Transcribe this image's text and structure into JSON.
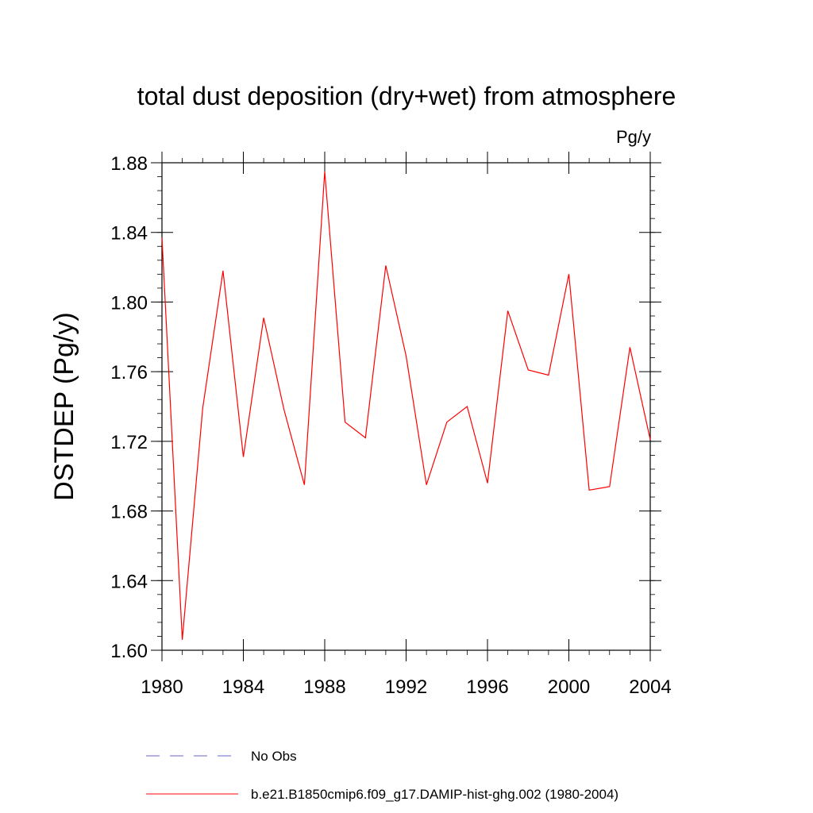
{
  "chart_data": {
    "type": "line",
    "title": "total dust deposition (dry+wet) from atmosphere",
    "units_label": "Pg/y",
    "ylabel": "DSTDEP  (Pg/y)",
    "xlabel": "",
    "xlim": [
      1980,
      2004
    ],
    "ylim": [
      1.6,
      1.88
    ],
    "x_ticks": [
      1980,
      1984,
      1988,
      1992,
      1996,
      2000,
      2004
    ],
    "x_tick_labels": [
      "1980",
      "1984",
      "1988",
      "1992",
      "1996",
      "2000",
      "2004"
    ],
    "y_ticks": [
      1.6,
      1.64,
      1.68,
      1.72,
      1.76,
      1.8,
      1.84,
      1.88
    ],
    "y_tick_labels": [
      "1.60",
      "1.64",
      "1.68",
      "1.72",
      "1.76",
      "1.80",
      "1.84",
      "1.88"
    ],
    "grid": false,
    "legend_position": "bottom",
    "x": [
      1980,
      1981,
      1982,
      1983,
      1984,
      1985,
      1986,
      1987,
      1988,
      1989,
      1990,
      1991,
      1992,
      1993,
      1994,
      1995,
      1996,
      1997,
      1998,
      1999,
      2000,
      2001,
      2002,
      2003,
      2004
    ],
    "series": [
      {
        "name": "b.e21.B1850cmip6.f09_g17.DAMIP-hist-ghg.002 (1980-2004)",
        "color": "#ff0000",
        "dash": "solid",
        "values": [
          1.837,
          1.606,
          1.739,
          1.818,
          1.711,
          1.791,
          1.738,
          1.695,
          1.875,
          1.731,
          1.722,
          1.821,
          1.769,
          1.695,
          1.731,
          1.74,
          1.696,
          1.795,
          1.761,
          1.758,
          1.816,
          1.692,
          1.694,
          1.774,
          1.721
        ]
      }
    ],
    "legend": [
      {
        "label": "No Obs",
        "color": "#6666cc",
        "dash": "dashed"
      },
      {
        "label": "b.e21.B1850cmip6.f09_g17.DAMIP-hist-ghg.002 (1980-2004)",
        "color": "#ff0000",
        "dash": "solid"
      }
    ]
  }
}
